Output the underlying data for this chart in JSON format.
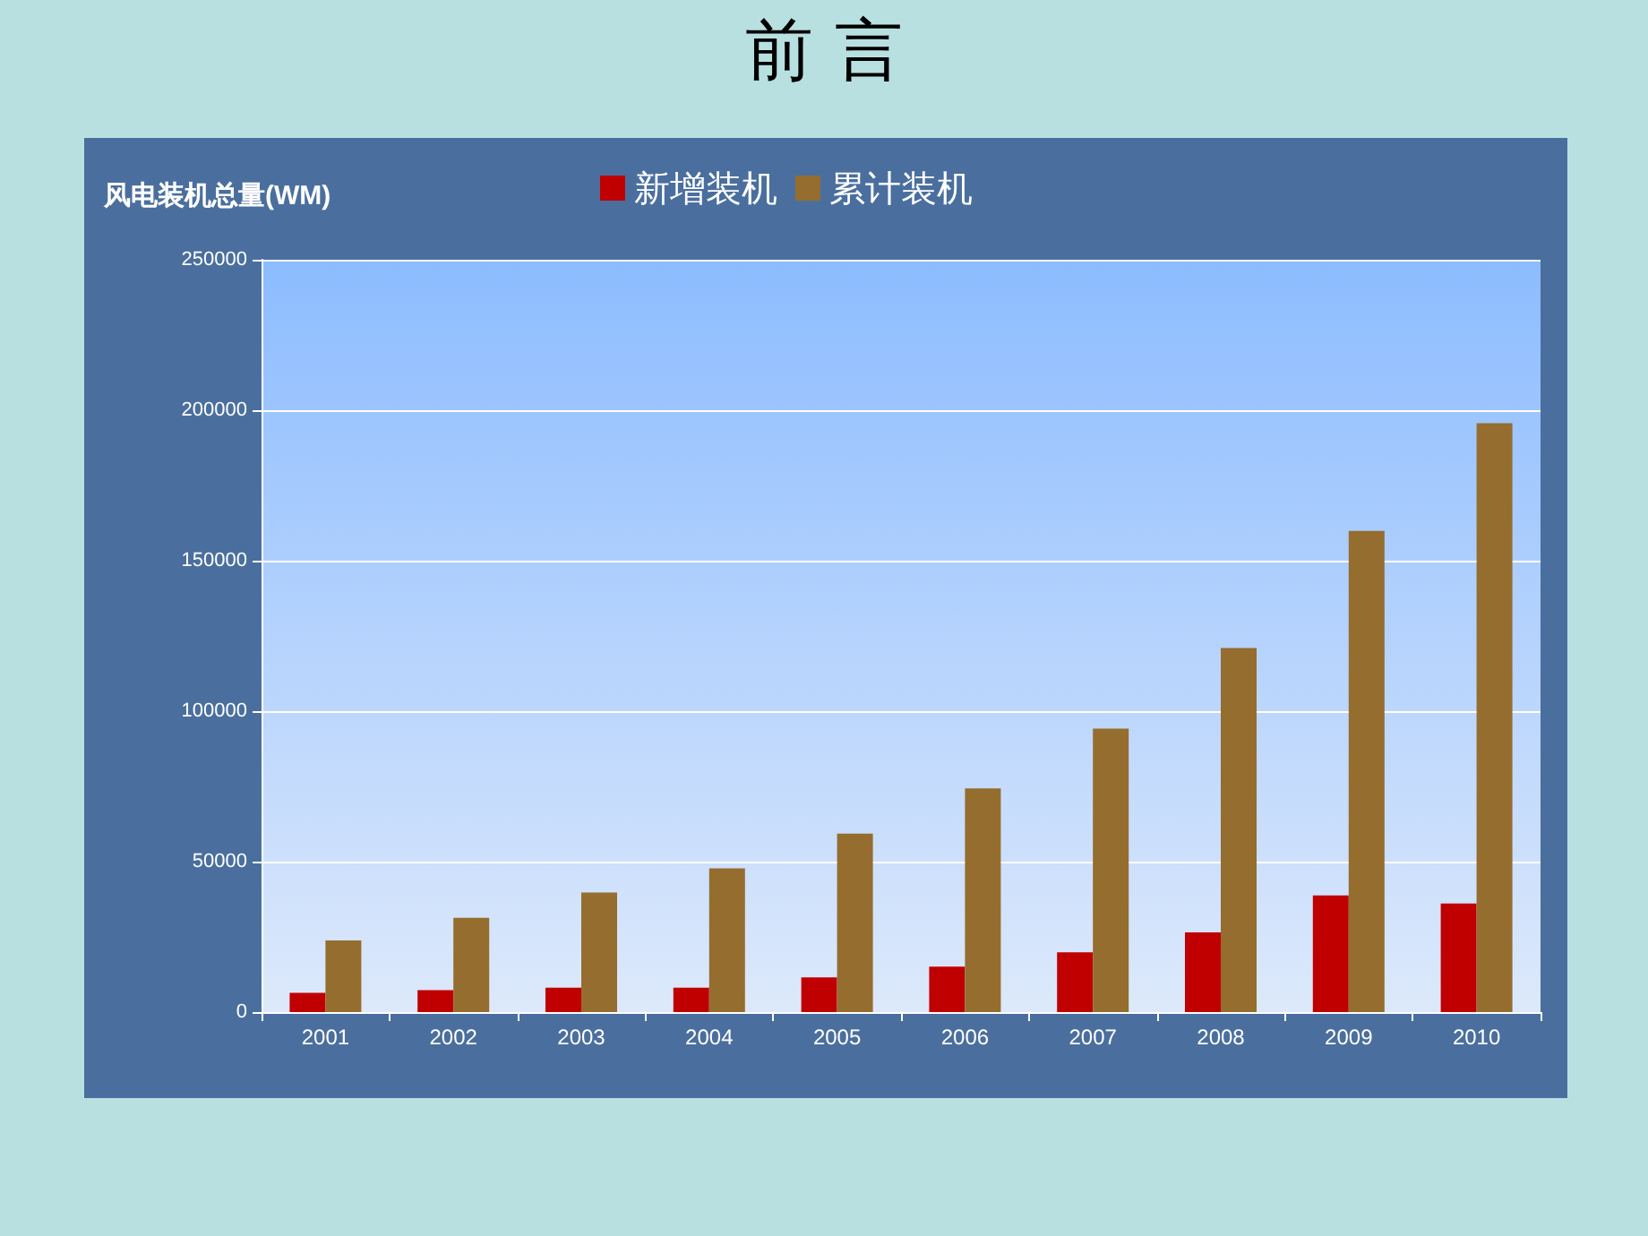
{
  "chart_data": {
    "type": "bar",
    "title": "前 言",
    "ylabel": "风电装机总量(WM)",
    "categories": [
      "2001",
      "2002",
      "2003",
      "2004",
      "2005",
      "2006",
      "2007",
      "2008",
      "2009",
      "2010"
    ],
    "series": [
      {
        "name": "新增装机",
        "color": "#c00000",
        "values": [
          6400,
          7300,
          8100,
          8100,
          11500,
          15100,
          19900,
          26500,
          38800,
          36100
        ]
      },
      {
        "name": "累计装机",
        "color": "#956d2e",
        "values": [
          23800,
          31300,
          39700,
          47800,
          59300,
          74300,
          94200,
          121000,
          159900,
          195700
        ]
      }
    ],
    "ylim": [
      0,
      250000
    ],
    "yticks": [
      0,
      50000,
      100000,
      150000,
      200000,
      250000
    ],
    "grid": "y",
    "legend": "top"
  }
}
